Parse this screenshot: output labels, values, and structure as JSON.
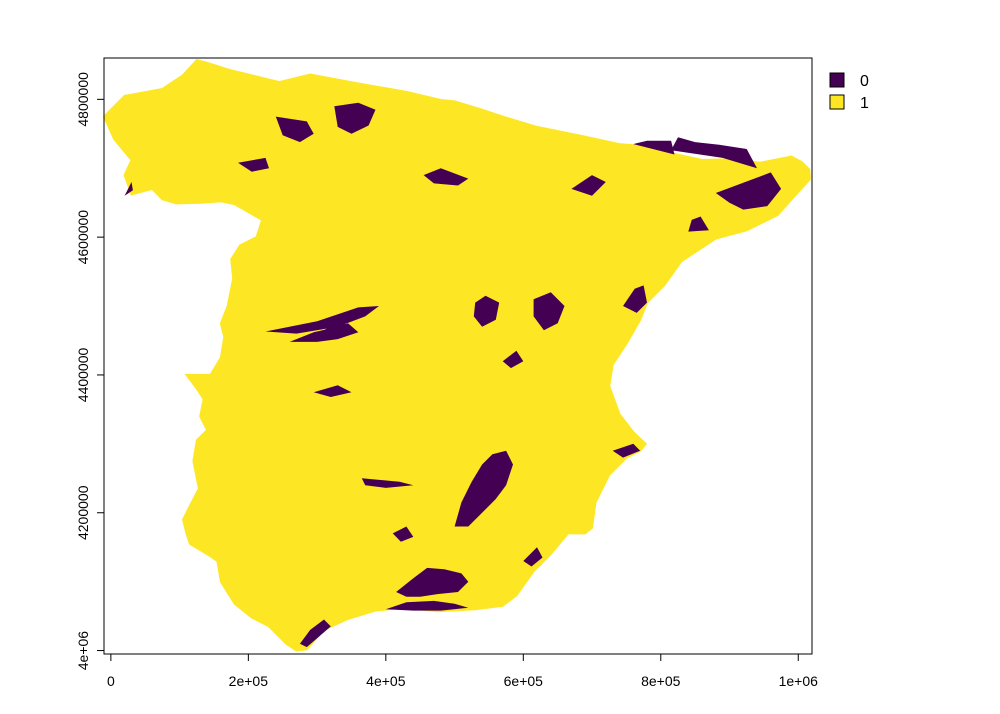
{
  "chart_data": {
    "type": "heatmap",
    "title": "",
    "xlabel": "",
    "ylabel": "",
    "xlim": [
      -10000,
      1020000
    ],
    "ylim": [
      3995000,
      4860000
    ],
    "x_ticks": [
      0,
      200000,
      400000,
      600000,
      800000,
      1000000
    ],
    "x_tick_labels": [
      "0",
      "2e+05",
      "4e+05",
      "6e+05",
      "8e+05",
      "1e+06"
    ],
    "y_ticks": [
      4000000,
      4200000,
      4400000,
      4600000,
      4800000
    ],
    "y_tick_labels": [
      "4e+06",
      "4200000",
      "4400000",
      "4600000",
      "4800000"
    ],
    "grid": false,
    "legend_position": "top-right",
    "legend": [
      {
        "label": "0",
        "color": "#440154"
      },
      {
        "label": "1",
        "color": "#FDE725"
      }
    ],
    "map_fill_color": "#FDE725",
    "patch_color": "#440154",
    "outline": [
      [
        -10000,
        4775000
      ],
      [
        20000,
        4805000
      ],
      [
        75000,
        4815000
      ],
      [
        105000,
        4835000
      ],
      [
        125000,
        4857000
      ],
      [
        140000,
        4853000
      ],
      [
        175000,
        4842000
      ],
      [
        245000,
        4825000
      ],
      [
        290000,
        4836000
      ],
      [
        360000,
        4823000
      ],
      [
        430000,
        4811000
      ],
      [
        480000,
        4799000
      ],
      [
        500000,
        4797000
      ],
      [
        540000,
        4785000
      ],
      [
        570000,
        4775000
      ],
      [
        620000,
        4760000
      ],
      [
        680000,
        4748000
      ],
      [
        740000,
        4735000
      ],
      [
        765000,
        4733000
      ],
      [
        800000,
        4725000
      ],
      [
        860000,
        4712000
      ],
      [
        900000,
        4713000
      ],
      [
        945000,
        4708000
      ],
      [
        990000,
        4717000
      ],
      [
        1005000,
        4709000
      ],
      [
        1016000,
        4698000
      ],
      [
        1017000,
        4684000
      ],
      [
        995000,
        4660000
      ],
      [
        970000,
        4632000
      ],
      [
        925000,
        4610000
      ],
      [
        880000,
        4598000
      ],
      [
        830000,
        4565000
      ],
      [
        805000,
        4530000
      ],
      [
        780000,
        4505000
      ],
      [
        770000,
        4480000
      ],
      [
        750000,
        4445000
      ],
      [
        730000,
        4415000
      ],
      [
        725000,
        4384000
      ],
      [
        740000,
        4343000
      ],
      [
        760000,
        4317000
      ],
      [
        778000,
        4300000
      ],
      [
        770000,
        4290000
      ],
      [
        750000,
        4280000
      ],
      [
        725000,
        4255000
      ],
      [
        705000,
        4215000
      ],
      [
        700000,
        4178000
      ],
      [
        690000,
        4170000
      ],
      [
        665000,
        4170000
      ],
      [
        640000,
        4140000
      ],
      [
        615000,
        4115000
      ],
      [
        590000,
        4080000
      ],
      [
        570000,
        4065000
      ],
      [
        530000,
        4060000
      ],
      [
        475000,
        4057000
      ],
      [
        425000,
        4062000
      ],
      [
        385000,
        4058000
      ],
      [
        345000,
        4046000
      ],
      [
        310000,
        4030000
      ],
      [
        285000,
        4002000
      ],
      [
        270000,
        4000000
      ],
      [
        255000,
        4010000
      ],
      [
        230000,
        4035000
      ],
      [
        205000,
        4048000
      ],
      [
        180000,
        4068000
      ],
      [
        160000,
        4100000
      ],
      [
        155000,
        4130000
      ],
      [
        140000,
        4140000
      ],
      [
        115000,
        4155000
      ],
      [
        110000,
        4170000
      ],
      [
        105000,
        4190000
      ],
      [
        115000,
        4210000
      ],
      [
        128000,
        4235000
      ],
      [
        125000,
        4250000
      ],
      [
        120000,
        4275000
      ],
      [
        125000,
        4305000
      ],
      [
        140000,
        4320000
      ],
      [
        130000,
        4340000
      ],
      [
        135000,
        4365000
      ],
      [
        125000,
        4380000
      ],
      [
        110000,
        4400000
      ],
      [
        145000,
        4400000
      ],
      [
        160000,
        4425000
      ],
      [
        165000,
        4455000
      ],
      [
        160000,
        4475000
      ],
      [
        170000,
        4500000
      ],
      [
        178000,
        4540000
      ],
      [
        175000,
        4568000
      ],
      [
        188000,
        4588000
      ],
      [
        212000,
        4600000
      ],
      [
        220000,
        4625000
      ],
      [
        180000,
        4648000
      ],
      [
        160000,
        4652000
      ],
      [
        132000,
        4650000
      ],
      [
        95000,
        4649000
      ],
      [
        75000,
        4655000
      ],
      [
        60000,
        4670000
      ],
      [
        30000,
        4662000
      ],
      [
        20000,
        4690000
      ],
      [
        30000,
        4712000
      ],
      [
        5000,
        4742000
      ]
    ],
    "patches": [
      [
        [
          815000,
          4726000
        ],
        [
          890000,
          4715000
        ],
        [
          940000,
          4700000
        ],
        [
          925000,
          4728000
        ],
        [
          885000,
          4734000
        ],
        [
          850000,
          4738000
        ],
        [
          825000,
          4745000
        ]
      ],
      [
        [
          760000,
          4735000
        ],
        [
          820000,
          4720000
        ],
        [
          815000,
          4740000
        ],
        [
          780000,
          4740000
        ]
      ],
      [
        [
          880000,
          4664000
        ],
        [
          960000,
          4694000
        ],
        [
          975000,
          4670000
        ],
        [
          955000,
          4645000
        ],
        [
          920000,
          4640000
        ],
        [
          900000,
          4650000
        ]
      ],
      [
        [
          840000,
          4608000
        ],
        [
          870000,
          4610000
        ],
        [
          858000,
          4630000
        ],
        [
          845000,
          4625000
        ]
      ],
      [
        [
          745000,
          4500000
        ],
        [
          762000,
          4525000
        ],
        [
          775000,
          4530000
        ],
        [
          780000,
          4505000
        ],
        [
          765000,
          4490000
        ]
      ],
      [
        [
          530000,
          4505000
        ],
        [
          545000,
          4515000
        ],
        [
          565000,
          4505000
        ],
        [
          560000,
          4480000
        ],
        [
          540000,
          4470000
        ],
        [
          528000,
          4485000
        ]
      ],
      [
        [
          615000,
          4510000
        ],
        [
          640000,
          4520000
        ],
        [
          660000,
          4500000
        ],
        [
          650000,
          4475000
        ],
        [
          630000,
          4465000
        ],
        [
          615000,
          4485000
        ]
      ],
      [
        [
          225000,
          4463000
        ],
        [
          300000,
          4478000
        ],
        [
          360000,
          4498000
        ],
        [
          390000,
          4500000
        ],
        [
          370000,
          4485000
        ],
        [
          330000,
          4470000
        ],
        [
          270000,
          4460000
        ]
      ],
      [
        [
          260000,
          4448000
        ],
        [
          295000,
          4462000
        ],
        [
          330000,
          4470000
        ],
        [
          345000,
          4475000
        ],
        [
          360000,
          4462000
        ],
        [
          330000,
          4452000
        ],
        [
          300000,
          4448000
        ]
      ],
      [
        [
          310000,
          4465000
        ],
        [
          330000,
          4478000
        ],
        [
          350000,
          4470000
        ],
        [
          340000,
          4456000
        ],
        [
          318000,
          4455000
        ]
      ],
      [
        [
          240000,
          4775000
        ],
        [
          285000,
          4768000
        ],
        [
          295000,
          4750000
        ],
        [
          275000,
          4738000
        ],
        [
          250000,
          4748000
        ]
      ],
      [
        [
          325000,
          4790000
        ],
        [
          360000,
          4795000
        ],
        [
          385000,
          4785000
        ],
        [
          375000,
          4762000
        ],
        [
          350000,
          4750000
        ],
        [
          330000,
          4760000
        ]
      ],
      [
        [
          185000,
          4708000
        ],
        [
          225000,
          4715000
        ],
        [
          230000,
          4700000
        ],
        [
          205000,
          4695000
        ]
      ],
      [
        [
          500000,
          4180000
        ],
        [
          510000,
          4215000
        ],
        [
          525000,
          4245000
        ],
        [
          540000,
          4270000
        ],
        [
          555000,
          4285000
        ],
        [
          575000,
          4290000
        ],
        [
          585000,
          4270000
        ],
        [
          575000,
          4240000
        ],
        [
          560000,
          4220000
        ],
        [
          540000,
          4200000
        ],
        [
          520000,
          4180000
        ]
      ],
      [
        [
          415000,
          4085000
        ],
        [
          440000,
          4105000
        ],
        [
          460000,
          4120000
        ],
        [
          485000,
          4118000
        ],
        [
          510000,
          4112000
        ],
        [
          520000,
          4100000
        ],
        [
          505000,
          4085000
        ],
        [
          475000,
          4082000
        ],
        [
          450000,
          4078000
        ],
        [
          430000,
          4078000
        ]
      ],
      [
        [
          400000,
          4060000
        ],
        [
          430000,
          4070000
        ],
        [
          470000,
          4072000
        ],
        [
          500000,
          4068000
        ],
        [
          520000,
          4062000
        ],
        [
          480000,
          4058000
        ],
        [
          440000,
          4058000
        ]
      ],
      [
        [
          275000,
          4010000
        ],
        [
          290000,
          4030000
        ],
        [
          310000,
          4045000
        ],
        [
          320000,
          4035000
        ],
        [
          300000,
          4018000
        ],
        [
          285000,
          4005000
        ]
      ],
      [
        [
          410000,
          4170000
        ],
        [
          430000,
          4180000
        ],
        [
          440000,
          4165000
        ],
        [
          422000,
          4158000
        ]
      ],
      [
        [
          600000,
          4130000
        ],
        [
          620000,
          4150000
        ],
        [
          628000,
          4135000
        ],
        [
          612000,
          4122000
        ]
      ],
      [
        [
          730000,
          4290000
        ],
        [
          760000,
          4300000
        ],
        [
          770000,
          4290000
        ],
        [
          745000,
          4280000
        ]
      ],
      [
        [
          20000,
          4660000
        ],
        [
          30000,
          4680000
        ],
        [
          32000,
          4668000
        ]
      ],
      [
        [
          365000,
          4250000
        ],
        [
          420000,
          4245000
        ],
        [
          440000,
          4240000
        ],
        [
          400000,
          4236000
        ],
        [
          370000,
          4240000
        ]
      ],
      [
        [
          670000,
          4670000
        ],
        [
          700000,
          4690000
        ],
        [
          720000,
          4680000
        ],
        [
          700000,
          4660000
        ]
      ],
      [
        [
          455000,
          4690000
        ],
        [
          480000,
          4700000
        ],
        [
          520000,
          4685000
        ],
        [
          505000,
          4675000
        ],
        [
          470000,
          4678000
        ]
      ],
      [
        [
          295000,
          4375000
        ],
        [
          330000,
          4385000
        ],
        [
          350000,
          4375000
        ],
        [
          320000,
          4368000
        ]
      ],
      [
        [
          570000,
          4420000
        ],
        [
          590000,
          4435000
        ],
        [
          600000,
          4420000
        ],
        [
          582000,
          4410000
        ]
      ]
    ]
  }
}
